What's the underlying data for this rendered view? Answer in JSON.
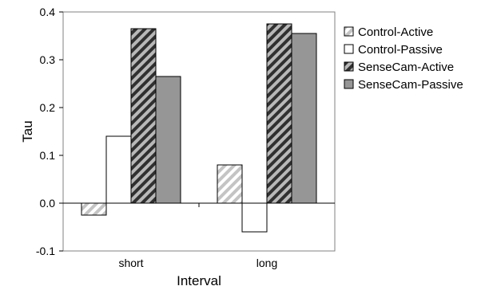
{
  "chart_data": {
    "type": "bar",
    "categories": [
      "short",
      "long"
    ],
    "series": [
      {
        "name": "Control-Active",
        "values": [
          -0.025,
          0.08
        ],
        "fill": "#ffffff",
        "pattern": "light-diagonal-hatch"
      },
      {
        "name": "Control-Passive",
        "values": [
          0.14,
          -0.06
        ],
        "fill": "#ffffff",
        "pattern": "none"
      },
      {
        "name": "SenseCam-Active",
        "values": [
          0.365,
          0.375
        ],
        "fill": "#606060",
        "pattern": "dark-diagonal-hatch"
      },
      {
        "name": "SenseCam-Passive",
        "values": [
          0.265,
          0.355
        ],
        "fill": "#969696",
        "pattern": "none"
      }
    ],
    "title": "",
    "xlabel": "Interval",
    "ylabel": "Tau",
    "ylim": [
      -0.1,
      0.4
    ],
    "yticks": [
      {
        "value": -0.1,
        "label": "-0.1"
      },
      {
        "value": 0.0,
        "label": "0.0"
      },
      {
        "value": 0.1,
        "label": "0.1"
      },
      {
        "value": 0.2,
        "label": "0.2"
      },
      {
        "value": 0.3,
        "label": "0.3"
      },
      {
        "value": 0.4,
        "label": "0.4"
      }
    ],
    "grid": false,
    "legend": "right"
  }
}
